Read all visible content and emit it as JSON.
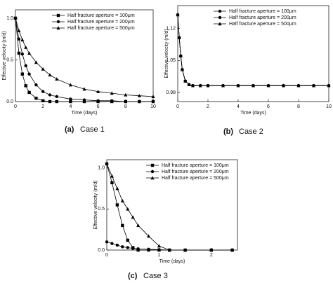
{
  "chart_data": [
    {
      "type": "line",
      "caption_label": "(a)",
      "caption": "Case 1",
      "x_label": "Time (days)",
      "y_label": "Effective velocity (m/d)",
      "x": [
        0,
        0.25,
        0.5,
        0.75,
        1,
        1.5,
        2,
        2.5,
        3,
        4,
        5,
        6,
        7,
        8,
        9,
        10
      ],
      "series": [
        {
          "name": "Half fracture aperture = 100μm",
          "color": "#000000",
          "marker": "square",
          "values": [
            1.0,
            0.58,
            0.33,
            0.19,
            0.11,
            0.04,
            0.01,
            0.0,
            0.0,
            0.0,
            0.0,
            0.0,
            0.0,
            0.0,
            0.0,
            0.0
          ]
        },
        {
          "name": "Half fracture aperture = 200μm",
          "color": "#000000",
          "marker": "circle",
          "values": [
            1.0,
            0.75,
            0.57,
            0.43,
            0.33,
            0.2,
            0.12,
            0.08,
            0.06,
            0.03,
            0.02,
            0.01,
            0.01,
            0.0,
            0.0,
            0.0
          ]
        },
        {
          "name": "Half fracture aperture = 500μm",
          "color": "#000000",
          "marker": "triangle",
          "values": [
            1.0,
            0.85,
            0.74,
            0.65,
            0.58,
            0.47,
            0.39,
            0.32,
            0.27,
            0.2,
            0.15,
            0.12,
            0.1,
            0.08,
            0.07,
            0.06
          ]
        }
      ],
      "xlim": [
        0,
        10
      ],
      "xticks": [
        0,
        2,
        4,
        6,
        8,
        10
      ],
      "ylim": [
        0,
        1.1
      ],
      "yticks": [
        {
          "value": 0,
          "label": "0.0"
        },
        {
          "value": 0.5,
          "label": "0.5"
        },
        {
          "value": 1,
          "label": "1.0"
        }
      ],
      "legend": "upper right"
    },
    {
      "type": "line",
      "caption_label": "(b)",
      "caption": "Case 2",
      "x_label": "Time (days)",
      "y_label": "Effective velocity (m/d)",
      "x": [
        0,
        0.1,
        0.2,
        0.3,
        0.5,
        0.75,
        1,
        1.5,
        2,
        3,
        4,
        5,
        6,
        7,
        8,
        9,
        10
      ],
      "series": [
        {
          "name": "Half fracture aperture = 100μm",
          "color": "#000000",
          "marker": "circle",
          "values": [
            1.15,
            1.1,
            1.06,
            1.03,
            1.005,
            0.997,
            0.995,
            0.995,
            0.995,
            0.995,
            0.995,
            0.995,
            0.995,
            0.995,
            0.995,
            0.995,
            0.995
          ]
        },
        {
          "name": "Half fracture aperture = 200μm",
          "color": "#000000",
          "marker": "circle",
          "values": [
            1.15,
            1.1,
            1.06,
            1.03,
            1.005,
            0.997,
            0.995,
            0.995,
            0.995,
            0.995,
            0.995,
            0.995,
            0.995,
            0.995,
            0.995,
            0.995,
            0.995
          ]
        },
        {
          "name": "Half fracture aperture = 500μm",
          "color": "#000000",
          "marker": "triangle",
          "values": [
            1.15,
            1.1,
            1.06,
            1.03,
            1.005,
            0.997,
            0.995,
            0.995,
            0.995,
            0.995,
            0.995,
            0.995,
            0.995,
            0.995,
            0.995,
            0.995,
            0.995
          ]
        }
      ],
      "xlim": [
        0,
        10
      ],
      "xticks": [
        0,
        2,
        4,
        6,
        8,
        10
      ],
      "ylim": [
        0.96,
        1.17
      ],
      "yticks": [
        0.98,
        1.05,
        1.12
      ],
      "legend": "upper right"
    },
    {
      "type": "line",
      "caption_label": "(c)",
      "caption": "Case 3",
      "x_label": "Time (days)",
      "y_label": "Effective velocity (m/d)",
      "x": [
        0,
        0.1,
        0.2,
        0.3,
        0.4,
        0.5,
        0.6,
        0.8,
        1.0,
        1.2,
        1.5,
        2,
        2.4
      ],
      "series": [
        {
          "name": "Half fracture aperture = 100μm",
          "color": "#000000",
          "marker": "square",
          "values": [
            1.05,
            0.82,
            0.55,
            0.3,
            0.12,
            0.03,
            0.0,
            0.0,
            0.0,
            0.0,
            0.0,
            0.0,
            0.0
          ]
        },
        {
          "name": "Half fracture aperture = 200μm",
          "color": "#000000",
          "marker": "circle",
          "values": [
            0.1,
            0.08,
            0.06,
            0.04,
            0.03,
            0.02,
            0.015,
            0.01,
            0.005,
            0.0,
            0.0,
            0.0,
            0.0
          ]
        },
        {
          "name": "Half fracture aperture = 500μm",
          "color": "#000000",
          "marker": "triangle",
          "values": [
            1.05,
            0.9,
            0.75,
            0.6,
            0.5,
            0.4,
            0.3,
            0.17,
            0.05,
            0.0,
            0.0,
            0.0,
            0.0
          ]
        }
      ],
      "xlim": [
        0,
        2.5
      ],
      "xticks": [
        0,
        1,
        2
      ],
      "ylim": [
        0,
        1.1
      ],
      "yticks": [
        {
          "value": 0,
          "label": "0.0"
        },
        {
          "value": 0.5,
          "label": "0.5"
        },
        {
          "value": 1,
          "label": "1.0"
        }
      ],
      "legend": "upper right"
    }
  ]
}
